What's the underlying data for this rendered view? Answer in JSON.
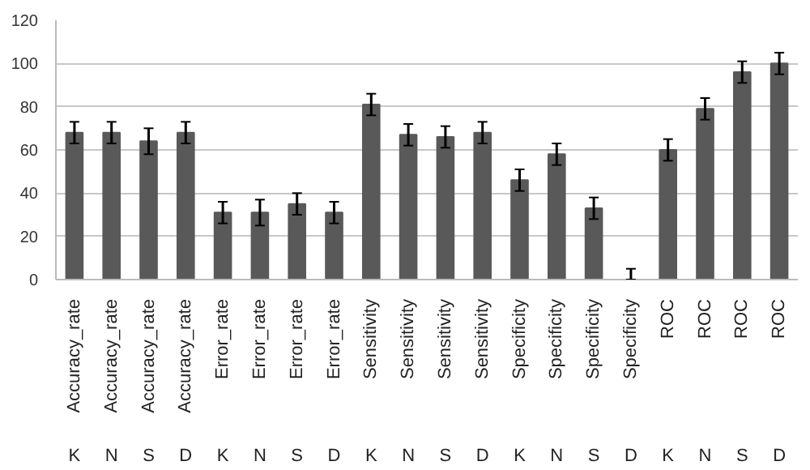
{
  "chart_data": {
    "type": "bar",
    "categories": [
      [
        "Accuracy_rate",
        "K"
      ],
      [
        "Accuracy_rate",
        "N"
      ],
      [
        "Accuracy_rate",
        "S"
      ],
      [
        "Accuracy_rate",
        "D"
      ],
      [
        "Error_rate",
        "K"
      ],
      [
        "Error_rate",
        "N"
      ],
      [
        "Error_rate",
        "S"
      ],
      [
        "Error_rate",
        "D"
      ],
      [
        "Sensitivity",
        "K"
      ],
      [
        "Sensitivity",
        "N"
      ],
      [
        "Sensitivity",
        "S"
      ],
      [
        "Sensitivity",
        "D"
      ],
      [
        "Specificity",
        "K"
      ],
      [
        "Specificity",
        "N"
      ],
      [
        "Specificity",
        "S"
      ],
      [
        "Specificity",
        "D"
      ],
      [
        "ROC",
        "K"
      ],
      [
        "ROC",
        "N"
      ],
      [
        "ROC",
        "S"
      ],
      [
        "ROC",
        "D"
      ]
    ],
    "values": [
      68,
      68,
      64,
      68,
      31,
      31,
      35,
      31,
      81,
      67,
      66,
      68,
      46,
      58,
      33,
      0,
      60,
      79,
      96,
      100
    ],
    "errors": [
      5,
      5,
      6,
      5,
      5,
      6,
      5,
      5,
      5,
      5,
      5,
      5,
      5,
      5,
      5,
      [
        0,
        5
      ],
      5,
      5,
      5,
      5
    ],
    "color": "#595959",
    "ylim": [
      0,
      120
    ],
    "yticks": [
      0,
      20,
      40,
      60,
      80,
      100,
      120
    ],
    "grid": "y"
  }
}
